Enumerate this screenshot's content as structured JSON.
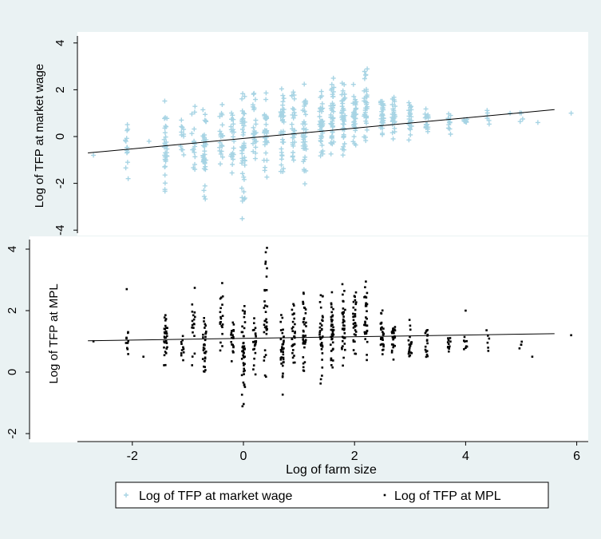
{
  "chart_data": [
    {
      "type": "scatter",
      "ylabel": "Log of TFP at market wage",
      "xlim": [
        -3,
        6.3
      ],
      "ylim": [
        -4.2,
        4.3
      ],
      "yticks": [
        -4,
        -2,
        0,
        2,
        4
      ],
      "grid": false,
      "series": [
        {
          "name": "Log of TFP at market wage",
          "marker": "plus",
          "color": "#a7d4e4",
          "columns": [
            {
              "x": -2.1,
              "y_min": -1.8,
              "y_max": 0.7,
              "n": 14
            },
            {
              "x": -1.4,
              "y_min": -2.9,
              "y_max": 1.6,
              "n": 32
            },
            {
              "x": -1.1,
              "y_min": -1.0,
              "y_max": 0.9,
              "n": 12
            },
            {
              "x": -0.9,
              "y_min": -1.5,
              "y_max": 1.3,
              "n": 16
            },
            {
              "x": -0.7,
              "y_min": -3.4,
              "y_max": 1.9,
              "n": 38
            },
            {
              "x": -0.4,
              "y_min": -1.5,
              "y_max": 1.5,
              "n": 20
            },
            {
              "x": -0.2,
              "y_min": -2.2,
              "y_max": 1.5,
              "n": 22
            },
            {
              "x": 0.0,
              "y_min": -3.8,
              "y_max": 2.4,
              "n": 44
            },
            {
              "x": 0.2,
              "y_min": -1.6,
              "y_max": 2.2,
              "n": 26
            },
            {
              "x": 0.4,
              "y_min": -2.4,
              "y_max": 2.3,
              "n": 34
            },
            {
              "x": 0.7,
              "y_min": -1.8,
              "y_max": 2.2,
              "n": 36
            },
            {
              "x": 0.9,
              "y_min": -1.2,
              "y_max": 2.1,
              "n": 30
            },
            {
              "x": 1.1,
              "y_min": -2.3,
              "y_max": 2.6,
              "n": 40
            },
            {
              "x": 1.4,
              "y_min": -1.3,
              "y_max": 2.5,
              "n": 38
            },
            {
              "x": 1.6,
              "y_min": -0.9,
              "y_max": 2.7,
              "n": 42
            },
            {
              "x": 1.8,
              "y_min": -1.0,
              "y_max": 2.5,
              "n": 40
            },
            {
              "x": 2.0,
              "y_min": -0.7,
              "y_max": 2.4,
              "n": 36
            },
            {
              "x": 2.2,
              "y_min": -0.5,
              "y_max": 3.1,
              "n": 34
            },
            {
              "x": 2.5,
              "y_min": -0.4,
              "y_max": 2.2,
              "n": 30
            },
            {
              "x": 2.7,
              "y_min": -0.3,
              "y_max": 1.9,
              "n": 26
            },
            {
              "x": 3.0,
              "y_min": -0.2,
              "y_max": 1.6,
              "n": 22
            },
            {
              "x": 3.3,
              "y_min": -0.1,
              "y_max": 1.4,
              "n": 18
            },
            {
              "x": 3.7,
              "y_min": 0.1,
              "y_max": 1.2,
              "n": 12
            },
            {
              "x": 4.0,
              "y_min": 0.2,
              "y_max": 1.1,
              "n": 8
            },
            {
              "x": 4.4,
              "y_min": 0.4,
              "y_max": 1.3,
              "n": 6
            },
            {
              "x": 5.0,
              "y_min": 0.6,
              "y_max": 1.1,
              "n": 4
            }
          ],
          "outliers": [
            {
              "x": -2.7,
              "y": -0.8
            },
            {
              "x": -1.7,
              "y": -0.2
            },
            {
              "x": 4.8,
              "y": 1.0
            },
            {
              "x": 5.3,
              "y": 0.6
            },
            {
              "x": 5.9,
              "y": 1.0
            }
          ]
        }
      ],
      "fit_line": {
        "x": [
          -2.8,
          5.6
        ],
        "y": [
          -0.7,
          1.15
        ],
        "color": "#000000"
      }
    },
    {
      "type": "scatter",
      "xlabel": "Log of farm size",
      "ylabel": "Log of TFP at MPL",
      "xlim": [
        -3,
        6.3
      ],
      "ylim": [
        -2.2,
        4.3
      ],
      "xticks": [
        -2,
        0,
        2,
        4,
        6
      ],
      "yticks": [
        -2,
        0,
        2,
        4
      ],
      "grid": false,
      "series": [
        {
          "name": "Log of TFP at MPL",
          "marker": "square",
          "color": "#000000",
          "columns": [
            {
              "x": -2.1,
              "y_min": 0.5,
              "y_max": 1.4,
              "n": 10
            },
            {
              "x": -1.4,
              "y_min": 0.1,
              "y_max": 2.3,
              "n": 30
            },
            {
              "x": -1.1,
              "y_min": 0.3,
              "y_max": 1.4,
              "n": 12
            },
            {
              "x": -0.9,
              "y_min": 0.1,
              "y_max": 2.8,
              "n": 18
            },
            {
              "x": -0.7,
              "y_min": -0.2,
              "y_max": 2.0,
              "n": 32
            },
            {
              "x": -0.4,
              "y_min": 0.3,
              "y_max": 3.0,
              "n": 20
            },
            {
              "x": -0.2,
              "y_min": 0.2,
              "y_max": 1.9,
              "n": 20
            },
            {
              "x": 0.0,
              "y_min": -1.3,
              "y_max": 2.3,
              "n": 44
            },
            {
              "x": 0.2,
              "y_min": -0.1,
              "y_max": 2.0,
              "n": 24
            },
            {
              "x": 0.4,
              "y_min": -0.5,
              "y_max": 4.1,
              "n": 34
            },
            {
              "x": 0.7,
              "y_min": -0.8,
              "y_max": 2.3,
              "n": 34
            },
            {
              "x": 0.9,
              "y_min": -0.1,
              "y_max": 2.4,
              "n": 30
            },
            {
              "x": 1.1,
              "y_min": -0.1,
              "y_max": 2.8,
              "n": 38
            },
            {
              "x": 1.4,
              "y_min": -0.5,
              "y_max": 2.8,
              "n": 36
            },
            {
              "x": 1.6,
              "y_min": 0.0,
              "y_max": 2.7,
              "n": 40
            },
            {
              "x": 1.8,
              "y_min": 0.1,
              "y_max": 3.2,
              "n": 38
            },
            {
              "x": 2.0,
              "y_min": 0.2,
              "y_max": 2.9,
              "n": 34
            },
            {
              "x": 2.2,
              "y_min": 0.2,
              "y_max": 3.1,
              "n": 32
            },
            {
              "x": 2.5,
              "y_min": 0.2,
              "y_max": 2.2,
              "n": 28
            },
            {
              "x": 2.7,
              "y_min": 0.3,
              "y_max": 2.0,
              "n": 24
            },
            {
              "x": 3.0,
              "y_min": 0.3,
              "y_max": 1.7,
              "n": 20
            },
            {
              "x": 3.3,
              "y_min": 0.4,
              "y_max": 1.5,
              "n": 16
            },
            {
              "x": 3.7,
              "y_min": 0.5,
              "y_max": 1.3,
              "n": 12
            },
            {
              "x": 4.0,
              "y_min": 0.5,
              "y_max": 1.2,
              "n": 8
            },
            {
              "x": 4.4,
              "y_min": 0.6,
              "y_max": 1.4,
              "n": 6
            },
            {
              "x": 5.0,
              "y_min": 0.6,
              "y_max": 1.1,
              "n": 4
            }
          ],
          "outliers": [
            {
              "x": -2.7,
              "y": 1.0
            },
            {
              "x": -2.1,
              "y": 2.7
            },
            {
              "x": -1.8,
              "y": 0.5
            },
            {
              "x": 4.0,
              "y": 2.0
            },
            {
              "x": 5.2,
              "y": 0.5
            },
            {
              "x": 5.9,
              "y": 1.2
            }
          ]
        }
      ],
      "fit_line": {
        "x": [
          -2.8,
          5.6
        ],
        "y": [
          1.02,
          1.25
        ],
        "color": "#000000"
      }
    }
  ],
  "legend": {
    "position": "bottom",
    "items": [
      {
        "label": "Log of TFP at market wage",
        "marker": "plus",
        "color": "#a7d4e4"
      },
      {
        "label": "Log of TFP at MPL",
        "marker": "square",
        "color": "#000000"
      }
    ]
  }
}
